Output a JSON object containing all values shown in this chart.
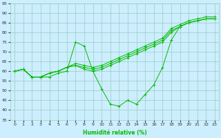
{
  "xlabel": "Humidité relative (%)",
  "background_color": "#cceeff",
  "grid_color": "#99ccbb",
  "line_color": "#00bb00",
  "xlim": [
    -0.5,
    23.5
  ],
  "ylim": [
    35,
    95
  ],
  "yticks": [
    35,
    40,
    45,
    50,
    55,
    60,
    65,
    70,
    75,
    80,
    85,
    90,
    95
  ],
  "xticks": [
    0,
    1,
    2,
    3,
    4,
    5,
    6,
    7,
    8,
    9,
    10,
    11,
    12,
    13,
    14,
    15,
    16,
    17,
    18,
    19,
    20,
    21,
    22,
    23
  ],
  "series": [
    [
      60,
      61,
      57,
      57,
      57,
      59,
      60,
      75,
      73,
      60,
      51,
      43,
      42,
      45,
      43,
      48,
      53,
      62,
      76,
      83,
      85,
      86,
      87,
      87
    ],
    [
      60,
      61,
      57,
      57,
      59,
      60,
      62,
      63,
      61,
      60,
      61,
      63,
      65,
      67,
      69,
      71,
      73,
      75,
      80,
      83,
      85,
      86,
      87,
      87
    ],
    [
      60,
      61,
      57,
      57,
      59,
      60,
      62,
      63,
      62,
      61,
      62,
      64,
      66,
      68,
      70,
      72,
      74,
      76,
      81,
      83,
      85,
      86,
      87,
      87
    ],
    [
      60,
      61,
      57,
      57,
      59,
      60,
      62,
      64,
      63,
      62,
      63,
      65,
      67,
      69,
      71,
      73,
      75,
      77,
      82,
      84,
      86,
      87,
      88,
      88
    ]
  ]
}
